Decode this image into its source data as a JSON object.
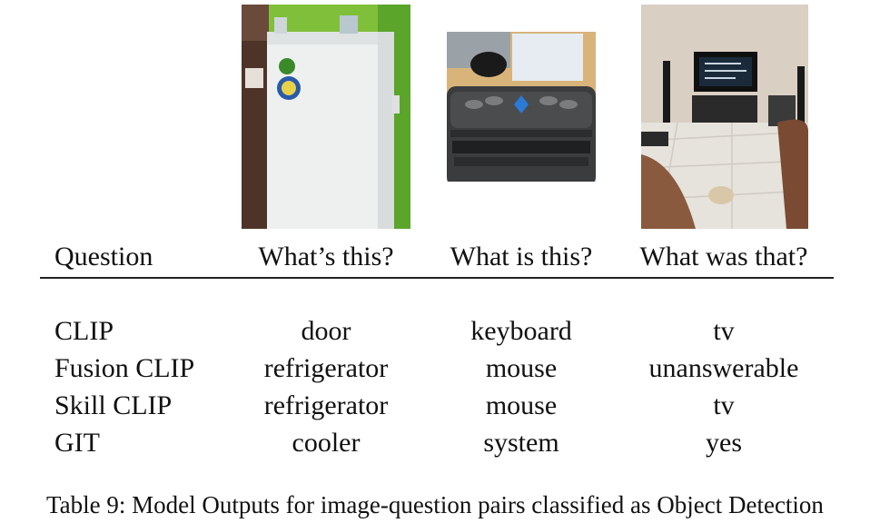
{
  "table": {
    "header": {
      "question_label": "Question",
      "questions": [
        "What’s this?",
        "What is this?",
        "What was that?"
      ]
    },
    "rows": [
      {
        "model": "CLIP",
        "outputs": [
          "door",
          "keyboard",
          "tv"
        ]
      },
      {
        "model": "Fusion CLIP",
        "outputs": [
          "refrigerator",
          "mouse",
          "unanswerable"
        ]
      },
      {
        "model": "Skill CLIP",
        "outputs": [
          "refrigerator",
          "mouse",
          "tv"
        ]
      },
      {
        "model": "GIT",
        "outputs": [
          "cooler",
          "system",
          "yes"
        ]
      }
    ]
  },
  "photos": [
    {
      "icon": "refrigerator-photo"
    },
    {
      "icon": "braille-keyboard-photo"
    },
    {
      "icon": "television-room-photo"
    }
  ],
  "caption": "Table 9: Model Outputs for image-question pairs classified as Object Detection"
}
